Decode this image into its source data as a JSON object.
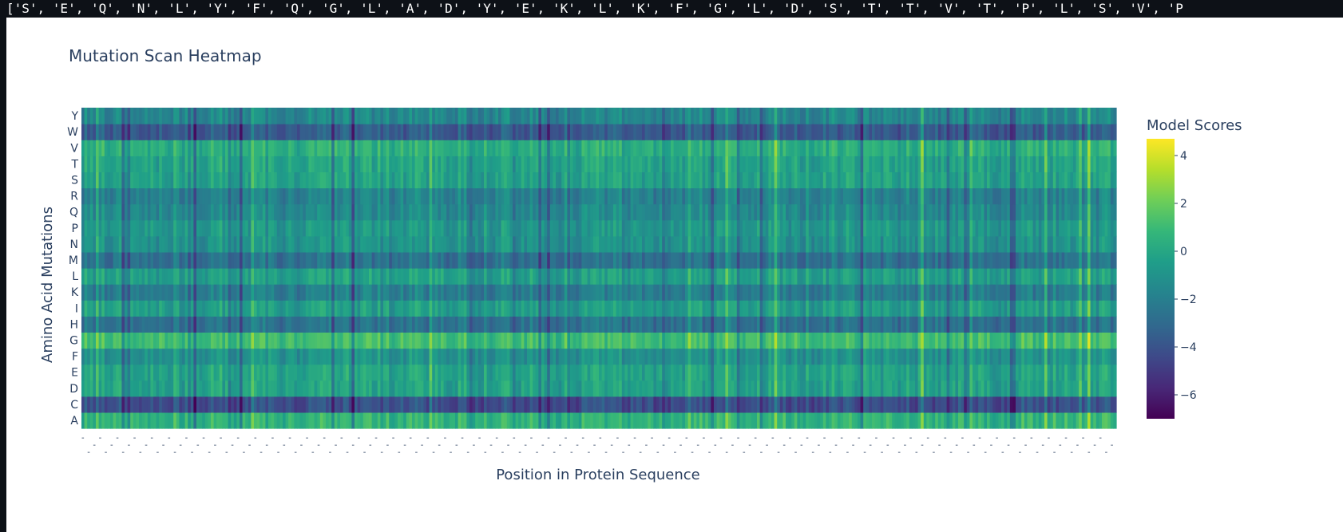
{
  "header": {
    "sequence_text": "['S', 'E', 'Q', 'N', 'L', 'Y', 'F', 'Q', 'G', 'L', 'A', 'D', 'Y', 'E', 'K', 'L', 'K', 'F', 'G', 'L', 'D', 'S', 'T', 'T', 'V', 'T', 'P', 'L', 'S', 'V', 'P"
  },
  "colors": {
    "background": "#ffffff",
    "text": "#2a3f5f",
    "colorscale": "viridis"
  },
  "chart_data": {
    "type": "heatmap",
    "title": "Mutation Scan Heatmap",
    "xlabel": "Position in Protein Sequence",
    "ylabel": "Amino Acid Mutations",
    "colorbar_title": "Model Scores",
    "y_categories": [
      "A",
      "C",
      "D",
      "E",
      "F",
      "G",
      "H",
      "I",
      "K",
      "L",
      "M",
      "N",
      "P",
      "Q",
      "R",
      "S",
      "T",
      "V",
      "W",
      "Y"
    ],
    "n_positions": 360,
    "zlim": [
      -7,
      4.7
    ],
    "colorbar_ticks": [
      4,
      2,
      0,
      -2,
      -4,
      -6
    ],
    "colorbar_tick_labels": [
      "4",
      "2",
      "0",
      "−2",
      "−4",
      "−6"
    ],
    "row_mean_scores": {
      "A": 0.6,
      "C": -4.2,
      "D": -0.3,
      "E": -0.2,
      "F": -1.0,
      "G": 1.1,
      "H": -2.6,
      "I": -0.5,
      "K": -2.0,
      "L": -0.4,
      "M": -2.6,
      "N": -1.0,
      "P": -0.8,
      "Q": -1.4,
      "R": -1.8,
      "S": -0.3,
      "T": -0.2,
      "V": 0.3,
      "W": -3.6,
      "Y": -1.6
    },
    "grid": false
  }
}
